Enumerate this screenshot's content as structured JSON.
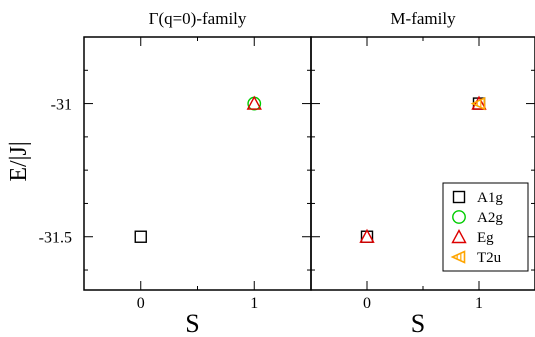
{
  "chart_data": {
    "type": "scatter",
    "ylabel": "E/|J|",
    "ylim": [
      -31.7,
      -30.75
    ],
    "yticks": [
      {
        "value": -31.0,
        "label": "-31"
      },
      {
        "value": -31.5,
        "label": "-31.5"
      }
    ],
    "legend": {
      "position": "bottom-right",
      "entries": [
        {
          "name": "A1g",
          "marker": "square",
          "color": "#000000"
        },
        {
          "name": "A2g",
          "marker": "circle",
          "color": "#00cc00"
        },
        {
          "name": "Eg",
          "marker": "triangle",
          "color": "#dd0000"
        },
        {
          "name": "T2u",
          "marker": "left-triangle",
          "color": "#ffa500"
        }
      ]
    },
    "panels": [
      {
        "title": "Γ(q=0)-family",
        "xlabel": "S",
        "xlim": [
          -0.5,
          1.5
        ],
        "xticks": [
          {
            "value": 0,
            "label": "0"
          },
          {
            "value": 1,
            "label": "1"
          }
        ],
        "points": [
          {
            "series": "A1g",
            "x": 0,
            "y": -31.5
          },
          {
            "series": "A2g",
            "x": 1,
            "y": -31.0
          },
          {
            "series": "Eg",
            "x": 1,
            "y": -31.0
          }
        ]
      },
      {
        "title": "M-family",
        "xlabel": "S",
        "xlim": [
          -0.5,
          1.5
        ],
        "xticks": [
          {
            "value": 0,
            "label": "0"
          },
          {
            "value": 1,
            "label": "1"
          }
        ],
        "points": [
          {
            "series": "A1g",
            "x": 0,
            "y": -31.5
          },
          {
            "series": "Eg",
            "x": 0,
            "y": -31.5
          },
          {
            "series": "A1g",
            "x": 1,
            "y": -31.0
          },
          {
            "series": "Eg",
            "x": 1,
            "y": -31.0
          },
          {
            "series": "T2u",
            "x": 1,
            "y": -31.0
          }
        ]
      }
    ]
  }
}
